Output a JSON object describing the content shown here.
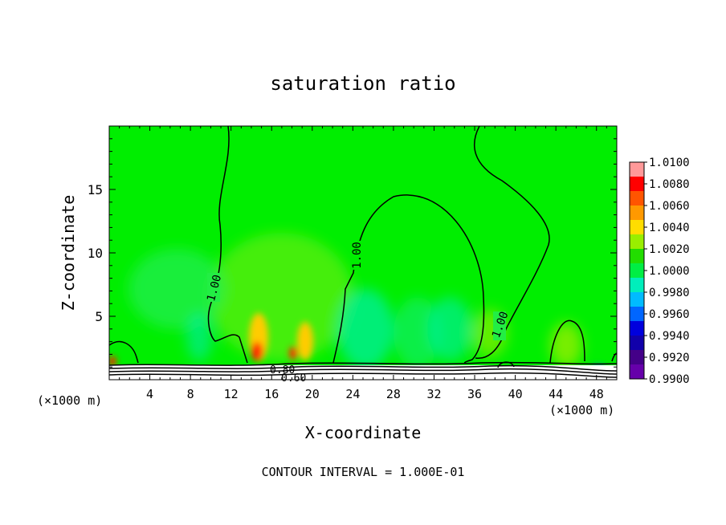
{
  "chart_data": {
    "type": "heatmap",
    "title": "saturation ratio",
    "xlabel": "X-coordinate",
    "ylabel": "Z-coordinate",
    "x_unit_left": "(×1000 m)",
    "x_unit_right": "(×1000 m)",
    "xlim": [
      0,
      50
    ],
    "ylim": [
      0,
      20
    ],
    "x_ticks": [
      "4",
      "8",
      "12",
      "16",
      "20",
      "24",
      "28",
      "32",
      "36",
      "40",
      "44",
      "48"
    ],
    "y_ticks": [
      "5",
      "10",
      "15"
    ],
    "footer": "CONTOUR INTERVAL = 1.000E-01",
    "colorbar": {
      "range": [
        0.99,
        1.01
      ],
      "labels": [
        "1.0100",
        "1.0080",
        "1.0060",
        "1.0040",
        "1.0020",
        "1.0000",
        "0.9980",
        "0.9960",
        "0.9940",
        "0.9920",
        "0.9900"
      ],
      "colors": [
        "#ff9999",
        "#ff0000",
        "#ff5500",
        "#ff9900",
        "#ffdd00",
        "#99ee00",
        "#22dd00",
        "#00ee44",
        "#00eebb",
        "#00bbff",
        "#0066ff",
        "#0000dd",
        "#1100aa",
        "#440088",
        "#6600aa"
      ]
    },
    "contour_labels": [
      "1.00",
      "1.00",
      "1.00",
      "0.80",
      "0.60"
    ],
    "contour_level": 1.0
  }
}
